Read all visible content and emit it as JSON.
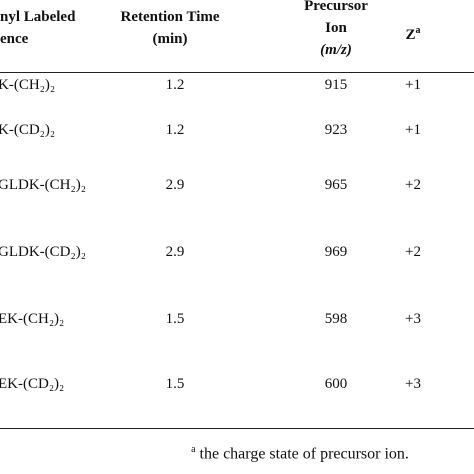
{
  "table": {
    "header": [
      {
        "lines": [
          "nyl Labeled",
          "ence"
        ]
      },
      {
        "lines": [
          "Retention Time",
          "(min)"
        ]
      },
      {
        "lines": [
          "Precursor",
          "Ion",
          "(m/z)"
        ]
      },
      {
        "lines": [
          "Z"
        ],
        "mark": "a"
      }
    ],
    "rows": [
      [
        "K-(CH₂)₂",
        "1.2",
        "915",
        "+1"
      ],
      [
        "K-(CD₂)₂",
        "1.2",
        "923",
        "+1"
      ],
      [
        "GLDK-(CH₂)₂",
        "2.9",
        "965",
        "+2"
      ],
      [
        "GLDK-(CD₂)₂",
        "2.9",
        "969",
        "+2"
      ],
      [
        "EK-(CH₂)₂",
        "1.5",
        "598",
        "+3"
      ],
      [
        "EK-(CD₂)₂",
        "1.5",
        "600",
        "+3"
      ]
    ],
    "footnote": {
      "mark": "a",
      "text": "the charge state of precursor ion."
    }
  }
}
